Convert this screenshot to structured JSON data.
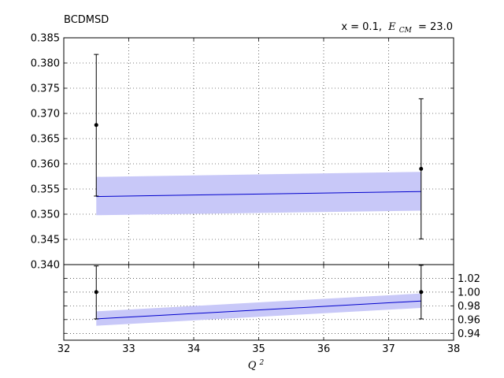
{
  "chart_data": {
    "type": "line",
    "title_left": "BCDMSD",
    "title_right_prefix": "x = 0.1,",
    "title_right_var": "E",
    "title_right_sub": "CM",
    "title_right_suffix": "= 23.0",
    "xlabel_var": "Q",
    "xlabel_sup": "2",
    "xlim": [
      32,
      38
    ],
    "x_ticks": [
      "32",
      "33",
      "34",
      "35",
      "36",
      "37",
      "38"
    ],
    "top": {
      "ylim": [
        0.34,
        0.385
      ],
      "y_ticks": [
        "0.340",
        "0.345",
        "0.350",
        "0.355",
        "0.360",
        "0.365",
        "0.370",
        "0.375",
        "0.380",
        "0.385"
      ],
      "x": [
        32.5,
        37.5
      ],
      "theory_central": [
        0.3535,
        0.3545
      ],
      "theory_band_low": [
        0.3498,
        0.3507
      ],
      "theory_band_high": [
        0.3574,
        0.3584
      ],
      "data_points": [
        {
          "x": 32.5,
          "y": 0.3677,
          "y_low": 0.3536,
          "y_high": 0.3817
        },
        {
          "x": 37.5,
          "y": 0.359,
          "y_low": 0.3451,
          "y_high": 0.3729
        }
      ]
    },
    "bottom": {
      "ylim": [
        0.93,
        1.04
      ],
      "y_ticks": [
        "0.94",
        "0.96",
        "0.98",
        "1.00",
        "1.02"
      ],
      "x": [
        32.5,
        37.5
      ],
      "theory_central": [
        0.961,
        0.987
      ],
      "theory_band_low": [
        0.951,
        0.977
      ],
      "theory_band_high": [
        0.972,
        0.998
      ],
      "data_points": [
        {
          "x": 32.5,
          "y": 1.0,
          "y_low": 0.961,
          "y_high": 1.038
        },
        {
          "x": 37.5,
          "y": 1.0,
          "y_low": 0.961,
          "y_high": 1.039
        }
      ]
    },
    "grid": true,
    "colors": {
      "theory_line": "#0000cc",
      "theory_band": "#c8c8f8",
      "data": "#000000",
      "axes": "#000000",
      "grid": "#000000"
    }
  }
}
